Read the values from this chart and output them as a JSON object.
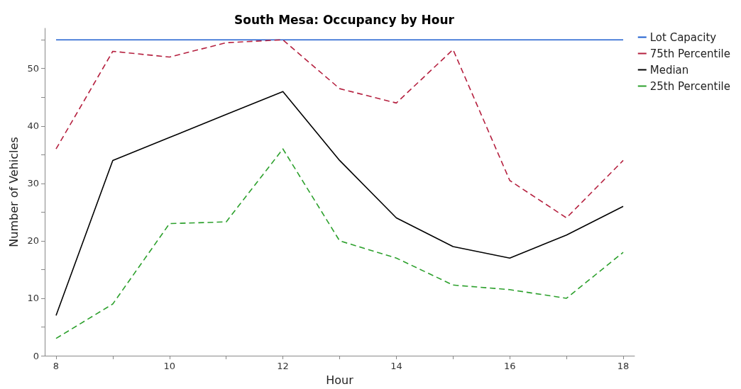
{
  "chart_data": {
    "type": "line",
    "title": "South Mesa: Occupancy by Hour",
    "xlabel": "Hour",
    "ylabel": "Number of Vehicles",
    "x": [
      8,
      9,
      10,
      11,
      12,
      13,
      14,
      15,
      16,
      17,
      18
    ],
    "series": [
      {
        "name": "Lot Capacity",
        "color": "#1f5fcf",
        "line_style": "solid",
        "values": [
          55,
          55,
          55,
          55,
          55,
          55,
          55,
          55,
          55,
          55,
          55
        ]
      },
      {
        "name": "75th Percentile",
        "color": "#b5203f",
        "line_style": "dashed",
        "values": [
          36,
          53,
          52,
          54.5,
          55,
          46.5,
          44,
          53.3,
          30.5,
          24,
          34
        ]
      },
      {
        "name": "Median",
        "color": "#000000",
        "line_style": "solid",
        "values": [
          7,
          34,
          38,
          42,
          46,
          34,
          24,
          19,
          17,
          21,
          26
        ]
      },
      {
        "name": "25th Percentile",
        "color": "#2ca02c",
        "line_style": "dashed",
        "values": [
          3,
          9,
          23,
          23.3,
          36,
          20,
          17,
          12.3,
          11.5,
          10,
          18
        ]
      }
    ],
    "xlim": [
      7.8,
      18.2
    ],
    "xticks": [
      8,
      {
        "value": 9,
        "label": null
      },
      10,
      {
        "value": 11,
        "label": null
      },
      12,
      {
        "value": 13,
        "label": null
      },
      14,
      {
        "value": 15,
        "label": null
      },
      16,
      {
        "value": 17,
        "label": null
      },
      18
    ],
    "ylim": [
      0,
      57
    ],
    "yticks": [
      0,
      {
        "value": 5,
        "label": null
      },
      10,
      {
        "value": 15,
        "label": null
      },
      20,
      {
        "value": 25,
        "label": null
      },
      30,
      {
        "value": 35,
        "label": null
      },
      40,
      {
        "value": 45,
        "label": null
      },
      50,
      {
        "value": 55,
        "label": null
      }
    ],
    "grid": false,
    "legend": "right",
    "marker": "none"
  }
}
